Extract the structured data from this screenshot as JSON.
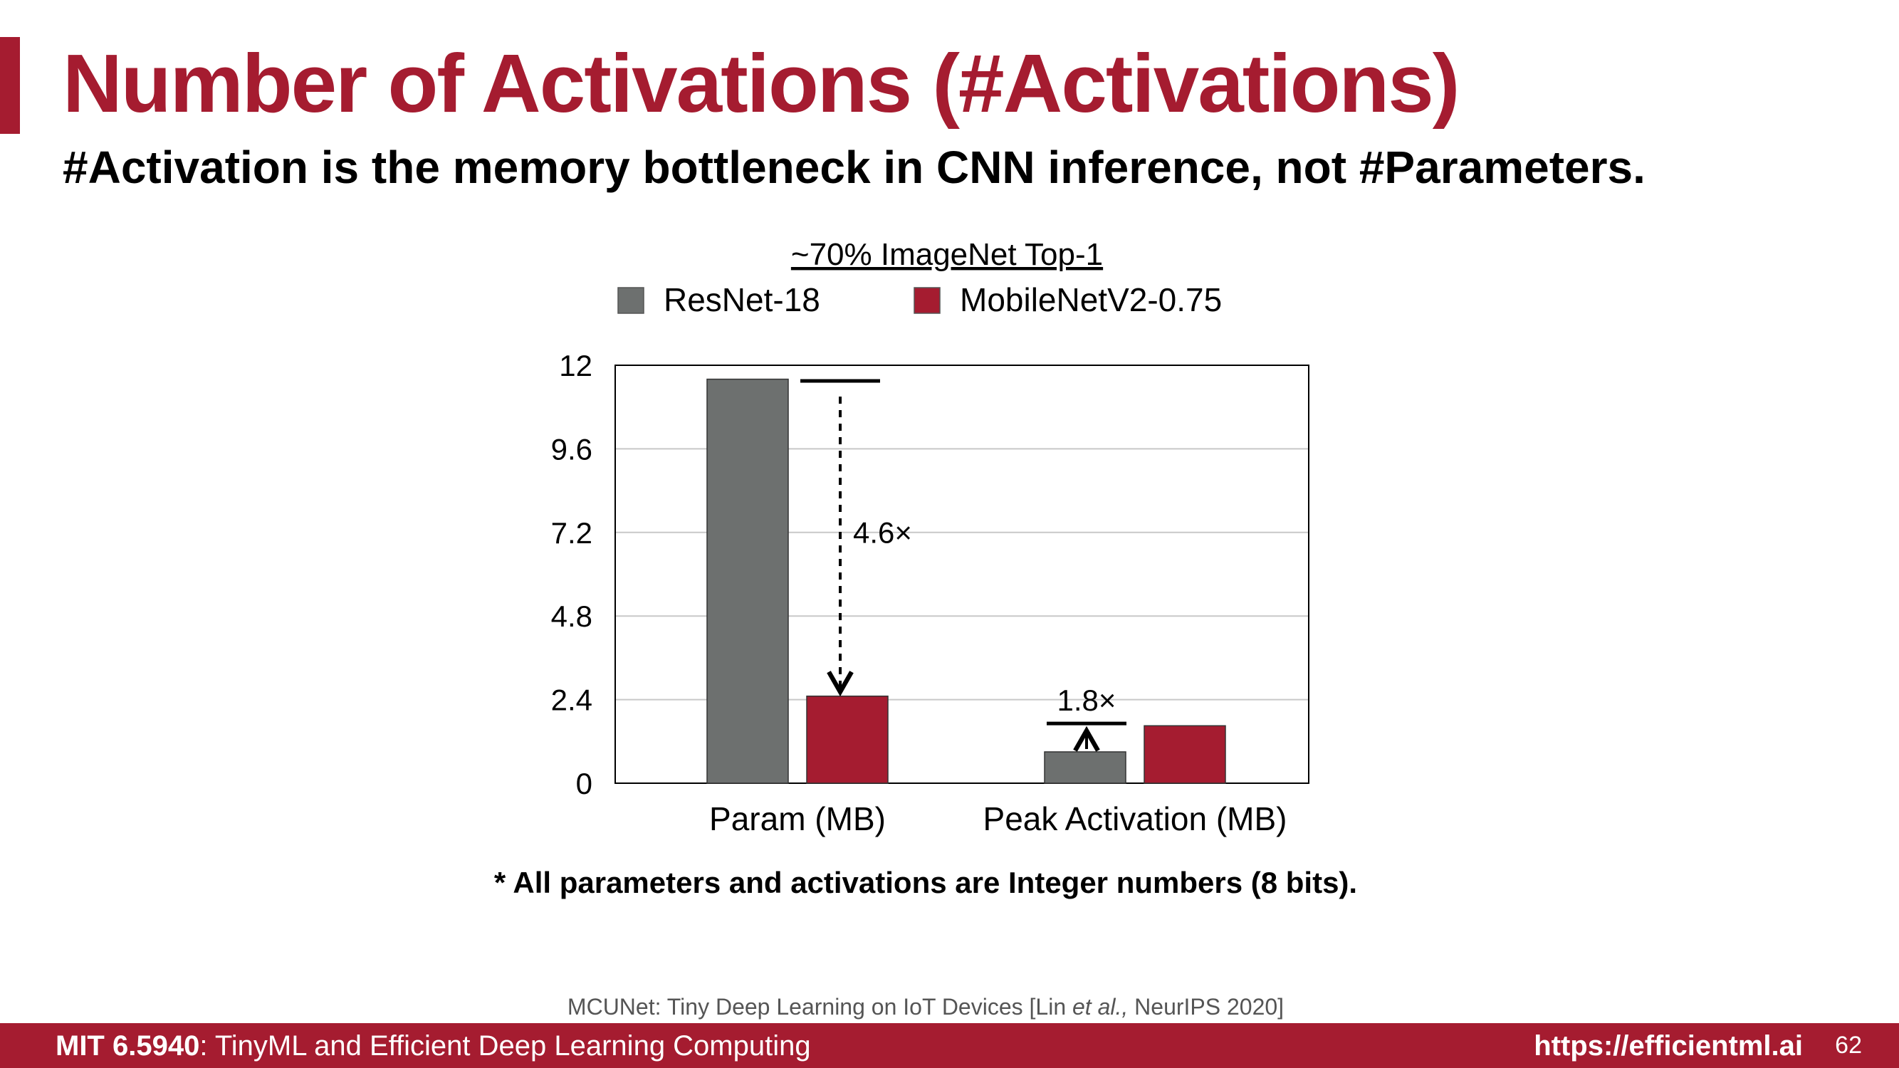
{
  "slide": {
    "title": "Number of Activations (#Activations)",
    "subtitle": "#Activation is the memory bottleneck in CNN inference, not #Parameters.",
    "footnote": "* All parameters and activations are Integer numbers (8 bits).",
    "citation_prefix": "MCUNet: Tiny Deep Learning on IoT Devices [Lin ",
    "citation_italic": "et al.,",
    "citation_suffix": " NeurIPS 2020]",
    "footer_course_code": "MIT 6.5940",
    "footer_course_name": ": TinyML and Efficient Deep Learning Computing",
    "footer_url": "https://efficientml.ai",
    "page_number": "62"
  },
  "colors": {
    "accent": "#a51c30",
    "resnet": "#6d706f",
    "mobilenet": "#a51c30"
  },
  "chart_data": {
    "type": "bar",
    "title": "~70% ImageNet Top-1",
    "categories": [
      "Param (MB)",
      "Peak Activation (MB)"
    ],
    "series": [
      {
        "name": "ResNet-18",
        "values": [
          11.6,
          0.9
        ]
      },
      {
        "name": "MobileNetV2-0.75",
        "values": [
          2.5,
          1.65
        ]
      }
    ],
    "ylim": [
      0,
      12
    ],
    "yticks": [
      "0",
      "2.4",
      "4.8",
      "7.2",
      "9.6",
      "12"
    ],
    "grid": true,
    "legend": "top",
    "annotations": [
      {
        "text": "4.6×",
        "category": "Param (MB)",
        "from": 11.1,
        "to": 2.5,
        "style": "dashed-arrow-down"
      },
      {
        "text": "1.8×",
        "category": "Peak Activation (MB)",
        "from": 0.9,
        "to": 1.55,
        "style": "arrow-up"
      }
    ]
  }
}
